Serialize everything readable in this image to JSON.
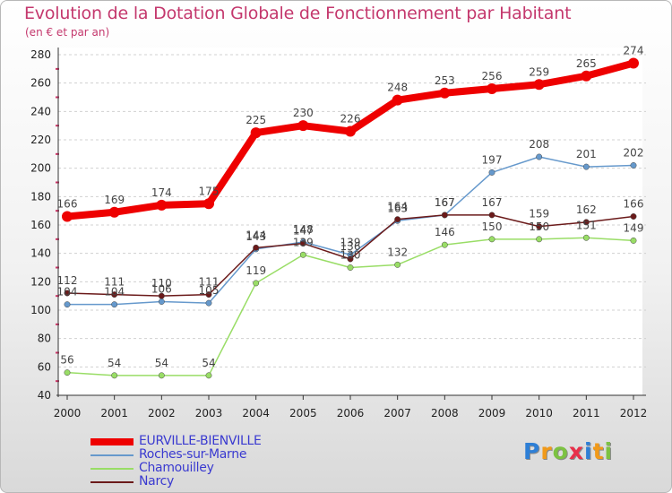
{
  "title": "Evolution de la Dotation Globale de Fonctionnement par Habitant",
  "subtitle": "(en € et par an)",
  "chart_data": {
    "type": "line",
    "title": "Evolution de la Dotation Globale de Fonctionnement par Habitant",
    "subtitle": "(en € et par an)",
    "x": [
      "2000",
      "2001",
      "2002",
      "2003",
      "2004",
      "2005",
      "2006",
      "2007",
      "2008",
      "2009",
      "2010",
      "2011",
      "2012"
    ],
    "ylim": [
      40,
      280
    ],
    "yticks": [
      40,
      60,
      80,
      100,
      120,
      140,
      160,
      180,
      200,
      220,
      240,
      260,
      280
    ],
    "grid": "horizontal dashed",
    "legend": "bottom-left",
    "series": [
      {
        "name": "EURVILLE-BIENVILLE",
        "color": "#ee0000",
        "values": [
          166,
          169,
          174,
          175,
          225,
          230,
          226,
          248,
          253,
          256,
          259,
          265,
          274
        ]
      },
      {
        "name": "Roches-sur-Marne",
        "color": "#6699cc",
        "values": [
          104,
          104,
          106,
          105,
          143,
          148,
          139,
          163,
          167,
          197,
          208,
          201,
          202
        ]
      },
      {
        "name": "Chamouilley",
        "color": "#99dd66",
        "values": [
          56,
          54,
          54,
          54,
          119,
          139,
          130,
          132,
          146,
          150,
          150,
          151,
          149
        ]
      },
      {
        "name": "Narcy",
        "color": "#6b1a1a",
        "values": [
          112,
          111,
          110,
          111,
          144,
          147,
          136,
          164,
          167,
          167,
          159,
          162,
          166
        ]
      }
    ]
  },
  "logo": {
    "letters": [
      "P",
      "r",
      "o",
      "x",
      "i",
      "t",
      "i"
    ],
    "colors": [
      "#2e7fd6",
      "#f19a1a",
      "#7cc242",
      "#e8304a",
      "#2e7fd6",
      "#f19a1a",
      "#7cc242"
    ]
  }
}
